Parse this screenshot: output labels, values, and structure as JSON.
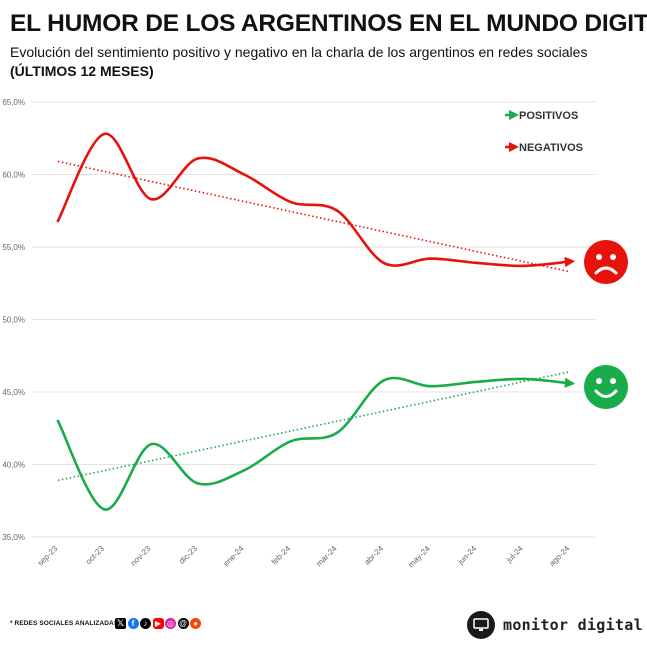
{
  "header": {
    "title": "EL HUMOR DE LOS ARGENTINOS EN EL MUNDO DIGITAL",
    "subtitle": "Evolución del sentimiento positivo y negativo en la charla de los argentinos en redes sociales",
    "subtitle2": "(ÚLTIMOS 12 MESES)"
  },
  "chart_data": {
    "type": "line",
    "title": "EL HUMOR DE LOS ARGENTINOS EN EL MUNDO DIGITAL",
    "subtitle": "Evolución del sentimiento positivo y negativo en la charla de los argentinos en redes sociales (ÚLTIMOS 12 MESES)",
    "categories": [
      "sep-23",
      "oct-23",
      "nov-23",
      "dic-23",
      "ene-24",
      "feb-24",
      "mar-24",
      "abr-24",
      "may-24",
      "jun-24",
      "jul-24",
      "ago-24"
    ],
    "y_ticks": [
      "35,0%",
      "40,0%",
      "45,0%",
      "50,0%",
      "55,0%",
      "60,0%",
      "65,0%"
    ],
    "ylim": [
      35,
      65
    ],
    "grid": "horizontal",
    "legend_position": "top-right",
    "series": [
      {
        "name": "POSITIVOS",
        "color": "#1aab4b",
        "values": [
          43.0,
          36.9,
          41.4,
          38.7,
          39.6,
          41.6,
          42.2,
          45.8,
          45.4,
          45.7,
          45.9,
          45.6
        ],
        "trendline": [
          38.9,
          46.4
        ]
      },
      {
        "name": "NEGATIVOS",
        "color": "#e8120c",
        "values": [
          56.8,
          62.8,
          58.3,
          61.1,
          60.0,
          58.1,
          57.5,
          53.9,
          54.2,
          53.9,
          53.7,
          54.0
        ],
        "trendline": [
          60.9,
          53.3
        ]
      }
    ]
  },
  "footer": {
    "networks_label": "* REDES SOCIALES ANALIZADAS",
    "brand": "monitor digital"
  },
  "icons": {
    "negative": "sad-face-icon",
    "positive": "happy-face-icon"
  }
}
